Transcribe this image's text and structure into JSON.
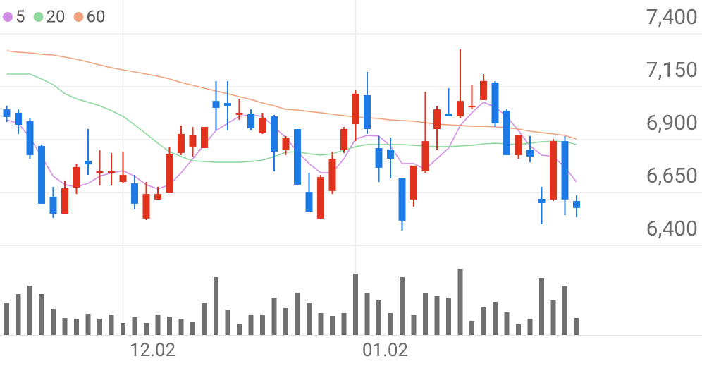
{
  "chart_data": {
    "type": "candlestick",
    "categories": [
      null,
      null,
      null,
      null,
      null,
      null,
      null,
      null,
      null,
      null,
      "12.02",
      null,
      null,
      null,
      null,
      null,
      null,
      null,
      null,
      null,
      null,
      null,
      null,
      null,
      null,
      null,
      null,
      null,
      null,
      null,
      "01.02",
      null,
      null,
      null,
      null,
      null,
      null,
      null,
      null,
      null,
      null,
      null,
      null,
      null,
      null,
      null,
      null,
      null,
      null,
      null
    ],
    "open": [
      7043,
      7027,
      6987,
      6870,
      6630,
      6550,
      6673,
      6800,
      6743,
      6743,
      6700,
      6693,
      6527,
      6617,
      6650,
      6837,
      6867,
      6860,
      7083,
      7073,
      7017,
      7020,
      6933,
      7010,
      6850,
      6950,
      6653,
      6527,
      6657,
      6850,
      6973,
      7110,
      6860,
      6853,
      6720,
      6617,
      6750,
      6950,
      7023,
      7010,
      7053,
      7087,
      7170,
      7037,
      6827,
      6853,
      6620,
      6617,
      6893,
      6610
    ],
    "high": [
      7060,
      7043,
      7000,
      6877,
      6677,
      6707,
      6787,
      6950,
      6850,
      6837,
      6843,
      6733,
      6700,
      6677,
      6867,
      6967,
      6960,
      6960,
      7177,
      7177,
      7093,
      7043,
      7027,
      7017,
      6917,
      6950,
      6743,
      6733,
      6843,
      6960,
      7133,
      7220,
      6917,
      6910,
      6720,
      6777,
      7127,
      7060,
      7143,
      7327,
      7160,
      7210,
      7177,
      7043,
      6920,
      6917,
      6677,
      6903,
      6917,
      6637
    ],
    "low": [
      6983,
      6927,
      6810,
      6597,
      6530,
      6550,
      6643,
      6733,
      6683,
      6683,
      6693,
      6570,
      6520,
      6617,
      6650,
      6827,
      6820,
      6860,
      6943,
      6943,
      6993,
      6943,
      6927,
      6750,
      6827,
      6687,
      6560,
      6527,
      6643,
      6837,
      6893,
      6927,
      6700,
      6717,
      6470,
      6583,
      6743,
      6850,
      7010,
      7003,
      7043,
      7087,
      6960,
      6827,
      6810,
      6793,
      6500,
      6610,
      6543,
      6533
    ],
    "close": [
      7007,
      6970,
      6827,
      6597,
      6550,
      6670,
      6770,
      6783,
      6750,
      6750,
      6733,
      6597,
      6643,
      6643,
      6833,
      6927,
      6920,
      6960,
      7050,
      7060,
      7027,
      6953,
      7003,
      6843,
      6910,
      6687,
      6560,
      6723,
      6810,
      6950,
      7117,
      6950,
      6767,
      6810,
      6517,
      6777,
      6893,
      7043,
      7010,
      7083,
      7060,
      7177,
      6977,
      6827,
      6920,
      6820,
      6600,
      6893,
      6617,
      6577
    ],
    "up_color": "#e0321c",
    "down_color": "#1e7be6",
    "series": [
      {
        "name": "5",
        "color": "#d48ee8",
        "values": [
          6993,
          6977,
          6910,
          6820,
          6727,
          6687,
          6677,
          6693,
          6727,
          6743,
          6753,
          6727,
          6687,
          6667,
          6687,
          6743,
          6810,
          6877,
          6943,
          6977,
          7010,
          7017,
          7010,
          6960,
          6910,
          6843,
          6787,
          6743,
          6743,
          6810,
          6903,
          6920,
          6917,
          6870,
          6787,
          6787,
          6760,
          6810,
          6860,
          6967,
          7027,
          7077,
          7053,
          7010,
          6943,
          6870,
          6827,
          6820,
          6770,
          6700
        ]
      },
      {
        "name": "20",
        "color": "#8fd9a0",
        "values": [
          7210,
          7210,
          7210,
          7187,
          7160,
          7117,
          7093,
          7077,
          7060,
          7037,
          7010,
          6970,
          6927,
          6883,
          6843,
          6820,
          6800,
          6797,
          6793,
          6793,
          6793,
          6797,
          6803,
          6820,
          6840,
          6843,
          6833,
          6827,
          6833,
          6850,
          6867,
          6877,
          6877,
          6877,
          6877,
          6873,
          6870,
          6867,
          6867,
          6870,
          6873,
          6880,
          6883,
          6880,
          6877,
          6883,
          6890,
          6893,
          6890,
          6877
        ]
      },
      {
        "name": "60",
        "color": "#f0a37e",
        "values": [
          7320,
          7313,
          7310,
          7303,
          7300,
          7290,
          7280,
          7267,
          7253,
          7240,
          7230,
          7220,
          7210,
          7200,
          7187,
          7170,
          7157,
          7143,
          7130,
          7117,
          7103,
          7090,
          7073,
          7060,
          7043,
          7040,
          7033,
          7027,
          7020,
          7013,
          7007,
          7003,
          7000,
          6993,
          6990,
          6987,
          6980,
          6973,
          6970,
          6967,
          6963,
          6963,
          6960,
          6957,
          6950,
          6940,
          6933,
          6927,
          6920,
          6903
        ]
      }
    ],
    "volume": [
      45,
      58,
      70,
      58,
      37,
      24,
      23,
      30,
      23,
      29,
      17,
      25,
      17,
      29,
      26,
      23,
      19,
      45,
      82,
      36,
      16,
      29,
      29,
      53,
      38,
      60,
      45,
      31,
      27,
      31,
      87,
      60,
      50,
      31,
      82,
      29,
      59,
      55,
      53,
      94,
      20,
      39,
      47,
      32,
      15,
      23,
      81,
      49,
      69,
      24
    ],
    "volume_color": "#707070",
    "volume_ylim": [
      0,
      120
    ],
    "ylim": [
      6400,
      7560
    ],
    "yticks": [
      {
        "value": 6400,
        "label": "6,400"
      },
      {
        "value": 6650,
        "label": "6,650"
      },
      {
        "value": 6900,
        "label": "6,900"
      },
      {
        "value": 7150,
        "label": "7,150"
      },
      {
        "value": 7400,
        "label": "7,400"
      }
    ],
    "grid": true,
    "legend": "top-left"
  }
}
